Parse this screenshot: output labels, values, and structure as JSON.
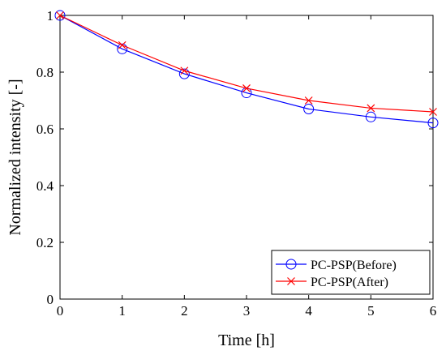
{
  "chart_data": {
    "type": "line",
    "xlabel": "Time [h]",
    "ylabel": "Normalized intensity [-]",
    "xlim": [
      0,
      6
    ],
    "ylim": [
      0,
      1
    ],
    "xticks": [
      "0",
      "1",
      "2",
      "3",
      "4",
      "5",
      "6"
    ],
    "yticks": [
      "0",
      "0.2",
      "0.4",
      "0.6",
      "0.8",
      "1"
    ],
    "grid": false,
    "legend_position": "bottom-right",
    "x": [
      0,
      1,
      2,
      3,
      4,
      5,
      6
    ],
    "series": [
      {
        "name": "PC-PSP(Before)",
        "values": [
          1.0,
          0.882,
          0.794,
          0.727,
          0.67,
          0.642,
          0.621
        ],
        "color": "#0000ff",
        "marker": "circle"
      },
      {
        "name": "PC-PSP(After)",
        "values": [
          1.0,
          0.895,
          0.805,
          0.743,
          0.7,
          0.673,
          0.66
        ],
        "color": "#ff0000",
        "marker": "x"
      }
    ]
  }
}
